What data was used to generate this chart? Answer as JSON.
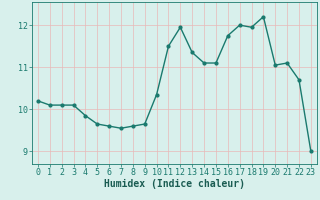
{
  "x": [
    0,
    1,
    2,
    3,
    4,
    5,
    6,
    7,
    8,
    9,
    10,
    11,
    12,
    13,
    14,
    15,
    16,
    17,
    18,
    19,
    20,
    21,
    22,
    23
  ],
  "y": [
    10.2,
    10.1,
    10.1,
    10.1,
    9.85,
    9.65,
    9.6,
    9.55,
    9.6,
    9.65,
    10.35,
    11.5,
    11.95,
    11.35,
    11.1,
    11.1,
    11.75,
    12.0,
    11.95,
    12.2,
    11.05,
    11.1,
    10.7,
    9.0
  ],
  "line_color": "#1a7a6e",
  "marker": "o",
  "marker_size": 2.0,
  "linewidth": 1.0,
  "xlabel": "Humidex (Indice chaleur)",
  "xlabel_fontsize": 7,
  "xlabel_color": "#1a5c52",
  "ylim": [
    8.7,
    12.55
  ],
  "xlim": [
    -0.5,
    23.5
  ],
  "yticks": [
    9,
    10,
    11,
    12
  ],
  "xticks": [
    0,
    1,
    2,
    3,
    4,
    5,
    6,
    7,
    8,
    9,
    10,
    11,
    12,
    13,
    14,
    15,
    16,
    17,
    18,
    19,
    20,
    21,
    22,
    23
  ],
  "tick_fontsize": 6,
  "grid_color": "#e8b8b8",
  "background_color": "#d8f0ec",
  "figure_background": "#d8f0ec",
  "spine_color": "#1a7a6e"
}
